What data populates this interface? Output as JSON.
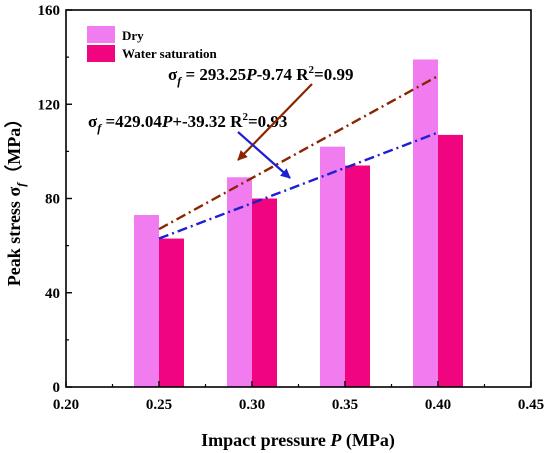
{
  "chart_data": {
    "type": "bar",
    "xlabel_parts": {
      "text1": "Impact pressure ",
      "var": "P",
      "text2": " (MPa)"
    },
    "ylabel_parts": {
      "text1": "Peak stress σ",
      "sub": "f",
      "text2": "（MPa）"
    },
    "xlim": [
      0.2,
      0.45
    ],
    "ylim": [
      0,
      160
    ],
    "xticks": [
      "0.20",
      "0.25",
      "0.30",
      "0.35",
      "0.40",
      "0.45"
    ],
    "yticks": [
      "0",
      "40",
      "80",
      "120",
      "160"
    ],
    "categories": [
      0.25,
      0.3,
      0.35,
      0.4
    ],
    "legend_position": "top-left",
    "series": [
      {
        "name": "Dry",
        "color": "#F07CF0",
        "values": [
          73,
          89,
          102,
          139
        ]
      },
      {
        "name": "Water saturation",
        "color": "#F0047F",
        "values": [
          63,
          80,
          94,
          107
        ]
      }
    ],
    "fit_lines": [
      {
        "label_parts": {
          "sigma": "σ",
          "sub": "f",
          "a": " = 293.25",
          "var": "P",
          "b": "-9.74 R",
          "sup": "2",
          "c": "=0.99"
        },
        "color": "#8B2500",
        "x_range": [
          0.25,
          0.4
        ],
        "y_range": [
          67,
          132
        ]
      },
      {
        "label_parts": {
          "sigma": "σ",
          "sub": "f",
          "a": " =429.04",
          "var": "P",
          "b": "+-39.32 R",
          "sup": "2",
          "c": "=0.93"
        },
        "color": "#1E1ED2",
        "x_range": [
          0.25,
          0.4
        ],
        "y_range": [
          63,
          108
        ]
      }
    ],
    "grid": false
  }
}
